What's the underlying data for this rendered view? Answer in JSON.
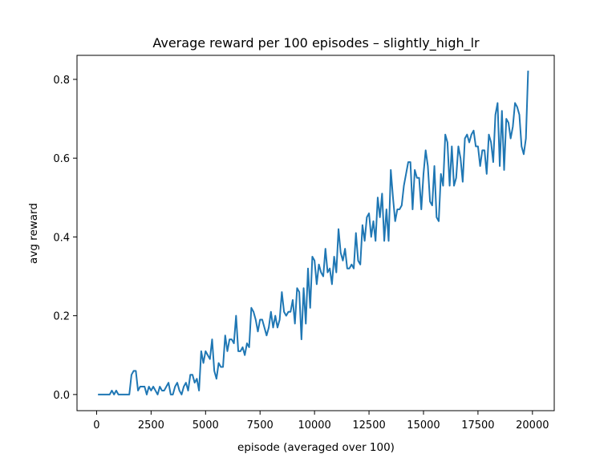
{
  "chart_data": {
    "type": "line",
    "title": "Average reward per 100 episodes – slightly_high_lr",
    "xlabel": "episode (averaged over 100)",
    "ylabel": "avg reward",
    "xlim": [
      -900,
      21000
    ],
    "ylim": [
      -0.041,
      0.861
    ],
    "x_ticks": [
      0,
      2500,
      5000,
      7500,
      10000,
      12500,
      15000,
      17500,
      20000
    ],
    "x_tick_labels": [
      "0",
      "2500",
      "5000",
      "7500",
      "10000",
      "12500",
      "15000",
      "17500",
      "20000"
    ],
    "y_ticks": [
      0.0,
      0.2,
      0.4,
      0.6,
      0.8
    ],
    "y_tick_labels": [
      "0.0",
      "0.2",
      "0.4",
      "0.6",
      "0.8"
    ],
    "grid": false,
    "line_color": "#1f77b4",
    "series": [
      {
        "x_start": 100,
        "x_step": 100,
        "values": [
          0.0,
          0.0,
          0.0,
          0.0,
          0.0,
          0.0,
          0.01,
          0.0,
          0.01,
          0.0,
          0.0,
          0.0,
          0.0,
          0.0,
          0.0,
          0.05,
          0.06,
          0.06,
          0.01,
          0.02,
          0.02,
          0.02,
          0.0,
          0.02,
          0.01,
          0.02,
          0.01,
          0.0,
          0.02,
          0.01,
          0.01,
          0.02,
          0.03,
          0.0,
          0.0,
          0.02,
          0.03,
          0.01,
          0.0,
          0.02,
          0.03,
          0.01,
          0.05,
          0.05,
          0.03,
          0.04,
          0.01,
          0.11,
          0.08,
          0.11,
          0.1,
          0.09,
          0.14,
          0.06,
          0.04,
          0.08,
          0.07,
          0.07,
          0.15,
          0.11,
          0.14,
          0.14,
          0.13,
          0.2,
          0.11,
          0.11,
          0.12,
          0.1,
          0.13,
          0.12,
          0.22,
          0.21,
          0.19,
          0.16,
          0.19,
          0.19,
          0.17,
          0.15,
          0.17,
          0.21,
          0.17,
          0.2,
          0.17,
          0.19,
          0.26,
          0.21,
          0.2,
          0.21,
          0.21,
          0.24,
          0.18,
          0.27,
          0.26,
          0.14,
          0.27,
          0.18,
          0.32,
          0.22,
          0.35,
          0.34,
          0.28,
          0.33,
          0.31,
          0.3,
          0.37,
          0.31,
          0.32,
          0.28,
          0.35,
          0.31,
          0.42,
          0.36,
          0.34,
          0.37,
          0.32,
          0.32,
          0.33,
          0.32,
          0.41,
          0.34,
          0.33,
          0.43,
          0.39,
          0.45,
          0.46,
          0.4,
          0.44,
          0.39,
          0.5,
          0.45,
          0.51,
          0.39,
          0.47,
          0.39,
          0.57,
          0.5,
          0.44,
          0.47,
          0.47,
          0.48,
          0.53,
          0.56,
          0.59,
          0.59,
          0.47,
          0.57,
          0.55,
          0.55,
          0.47,
          0.56,
          0.62,
          0.58,
          0.49,
          0.48,
          0.58,
          0.45,
          0.44,
          0.56,
          0.53,
          0.66,
          0.64,
          0.53,
          0.63,
          0.53,
          0.55,
          0.63,
          0.6,
          0.54,
          0.65,
          0.66,
          0.64,
          0.66,
          0.67,
          0.63,
          0.63,
          0.58,
          0.62,
          0.62,
          0.56,
          0.66,
          0.64,
          0.59,
          0.71,
          0.74,
          0.58,
          0.72,
          0.57,
          0.7,
          0.69,
          0.65,
          0.68,
          0.74,
          0.73,
          0.71,
          0.63,
          0.61,
          0.65,
          0.82
        ]
      }
    ]
  }
}
